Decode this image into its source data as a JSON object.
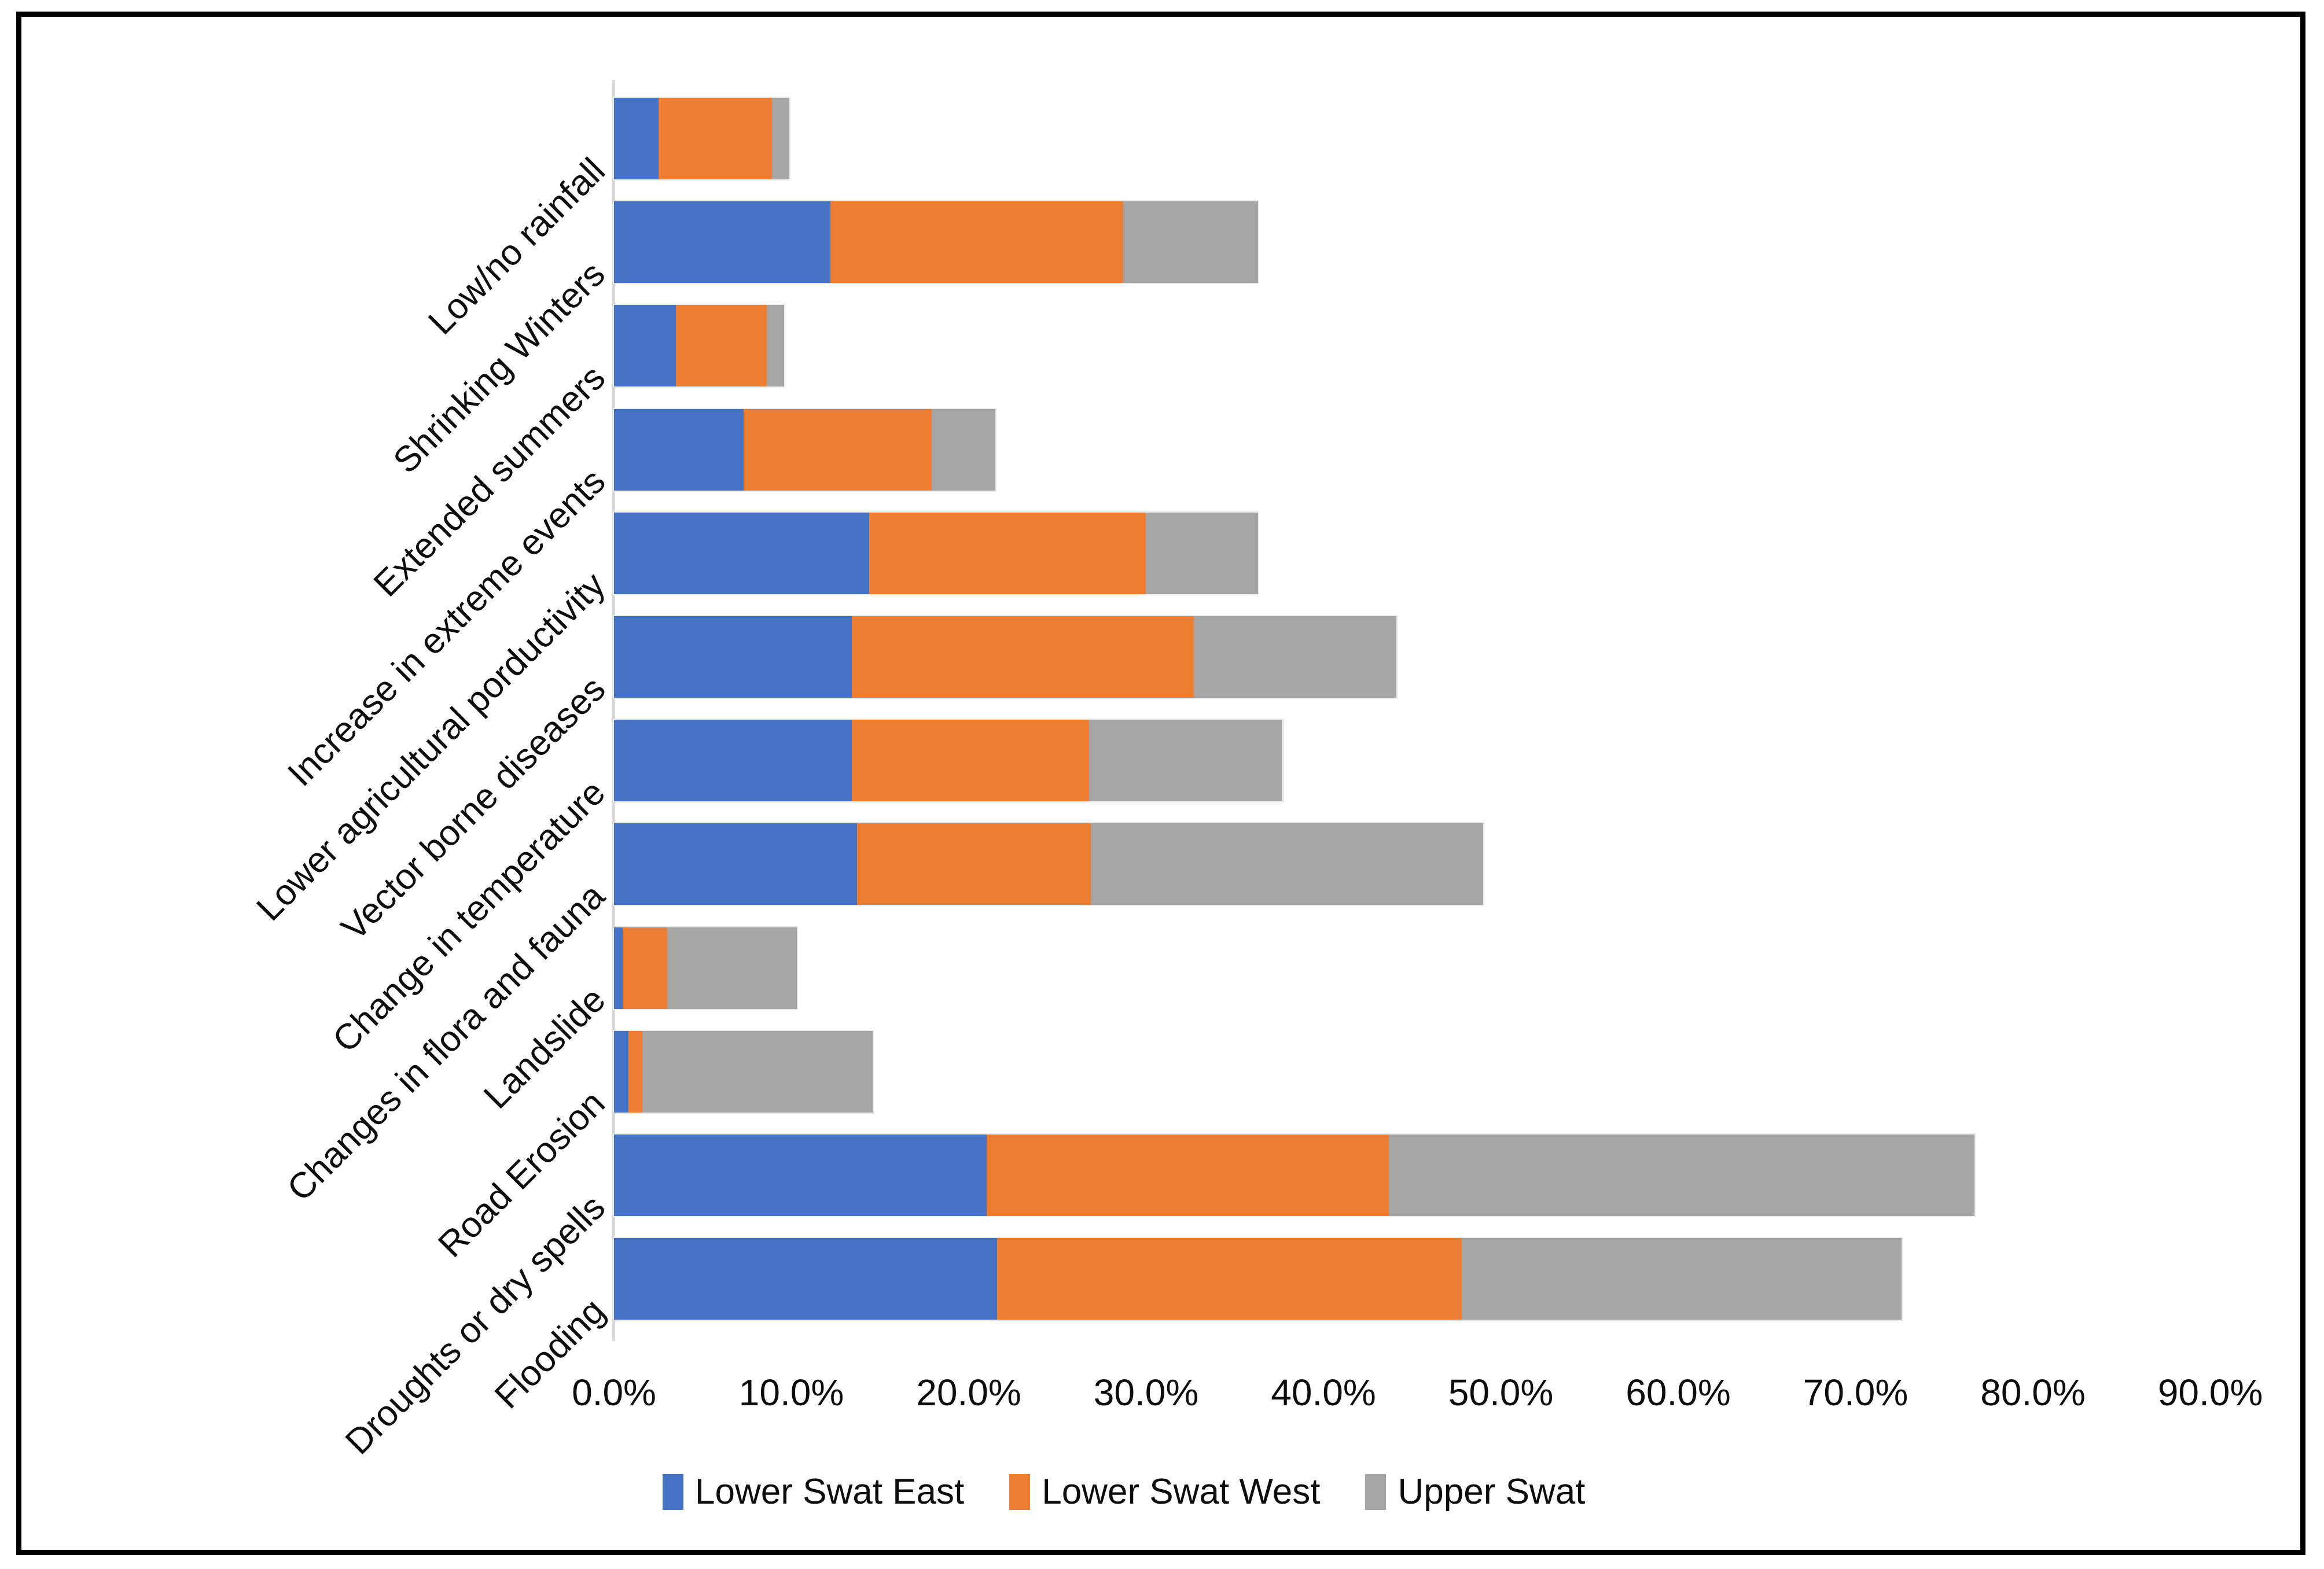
{
  "chart_data": {
    "type": "bar",
    "orientation": "horizontal-stacked",
    "title": "",
    "xlabel": "",
    "ylabel": "",
    "grid": false,
    "legend_position": "bottom",
    "x_axis": {
      "min": 0,
      "max": 90,
      "unit": "%",
      "ticks": [
        "0.0%",
        "10.0%",
        "20.0%",
        "30.0%",
        "40.0%",
        "50.0%",
        "60.0%",
        "70.0%",
        "80.0%",
        "90.0%"
      ]
    },
    "categories": [
      "Low/no rainfall",
      "Shrinking Winters",
      "Extended summers",
      "Increase in extreme events",
      "Lower agricultural porductivity",
      "Vector borne diseases",
      "Change in temperature",
      "Changes in flora and fauna",
      "Landslide",
      "Road Erosion",
      "Droughts or dry spells",
      "Flooding"
    ],
    "series": [
      {
        "name": "Lower Swat East",
        "color": "#4472C4",
        "values": [
          2.5,
          12.2,
          3.5,
          7.3,
          14.4,
          13.4,
          13.4,
          13.7,
          0.5,
          0.8,
          21.0,
          21.6
        ]
      },
      {
        "name": "Lower Swat West",
        "color": "#ED7D31",
        "values": [
          6.4,
          16.5,
          5.1,
          10.6,
          15.6,
          19.3,
          13.4,
          13.2,
          2.5,
          0.8,
          22.7,
          26.2
        ]
      },
      {
        "name": "Upper Swat",
        "color": "#A5A5A5",
        "values": [
          1.0,
          7.6,
          1.0,
          3.6,
          6.3,
          11.4,
          10.9,
          22.1,
          7.3,
          13.0,
          33.0,
          24.8
        ]
      }
    ]
  },
  "colors": {
    "background": "#FFFFFF",
    "frame_border": "#000000",
    "axis_line": "#D9D9D9",
    "text": "#0D0D0D"
  }
}
